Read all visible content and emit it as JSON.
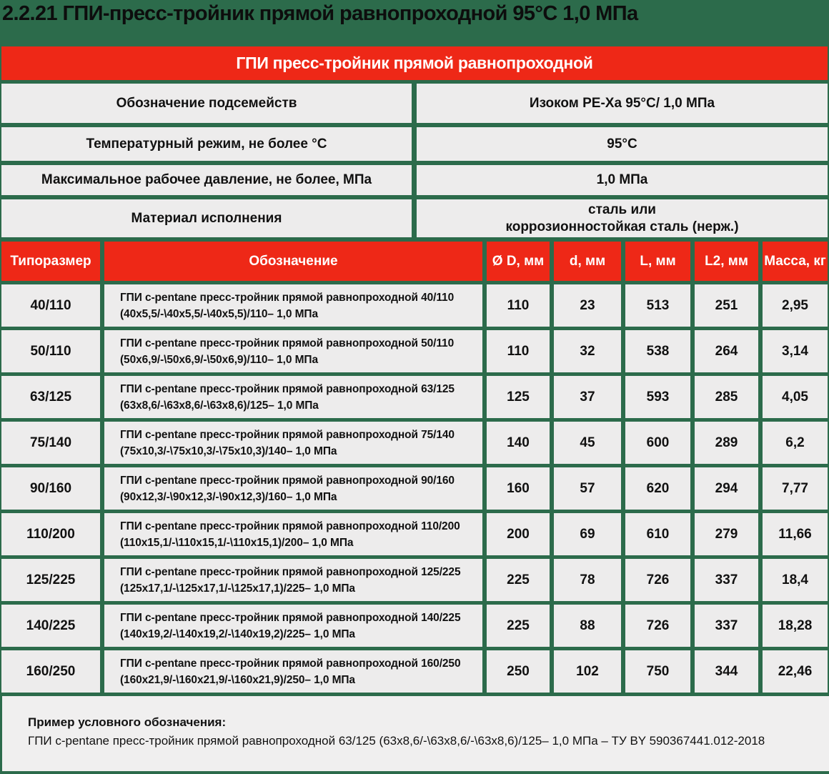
{
  "page": {
    "title": "2.2.21 ГПИ-пресс-тройник прямой равнопроходной 95°С 1,0 МПа",
    "banner": "ГПИ пресс-тройник прямой равнопроходной",
    "colors": {
      "background_green": "#2c6b4b",
      "accent_red": "#ee2817",
      "cell_gray": "#edecec",
      "footer_gray": "#f0efef"
    }
  },
  "specs": [
    {
      "label": "Обозначение подсемейств",
      "value": "Изоком PE-Xa 95°С/ 1,0 МПа"
    },
    {
      "label": "Температурный режим, не более °С",
      "value": "95°С"
    },
    {
      "label": "Максимальное рабочее давление, не более, МПа",
      "value": "1,0 МПа"
    },
    {
      "label": "Материал исполнения",
      "value": "сталь или",
      "value2": "коррозионностойкая сталь (нерж.)"
    }
  ],
  "table": {
    "headers": [
      "Типоразмер",
      "Обозначение",
      "Ø D, мм",
      "d, мм",
      "L, мм",
      "L2, мм",
      "Масса, кг"
    ],
    "rows": [
      {
        "size": "40/110",
        "desc1": "ГПИ c-pentane пресс-тройник прямой равнопроходной 40/110",
        "desc2": "(40x5,5/-\\40x5,5/-\\40x5,5)/110– 1,0 МПа",
        "D": "110",
        "d": "23",
        "L": "513",
        "L2": "251",
        "mass": "2,95"
      },
      {
        "size": "50/110",
        "desc1": "ГПИ c-pentane пресс-тройник прямой равнопроходной 50/110",
        "desc2": "(50x6,9/-\\50x6,9/-\\50x6,9)/110– 1,0 МПа",
        "D": "110",
        "d": "32",
        "L": "538",
        "L2": "264",
        "mass": "3,14"
      },
      {
        "size": "63/125",
        "desc1": "ГПИ c-pentane пресс-тройник прямой равнопроходной 63/125",
        "desc2": "(63x8,6/-\\63x8,6/-\\63x8,6)/125– 1,0 МПа",
        "D": "125",
        "d": "37",
        "L": "593",
        "L2": "285",
        "mass": "4,05"
      },
      {
        "size": "75/140",
        "desc1": "ГПИ c-pentane пресс-тройник прямой равнопроходной 75/140",
        "desc2": "(75x10,3/-\\75x10,3/-\\75x10,3)/140– 1,0 МПа",
        "D": "140",
        "d": "45",
        "L": "600",
        "L2": "289",
        "mass": "6,2"
      },
      {
        "size": "90/160",
        "desc1": "ГПИ c-pentane пресс-тройник прямой равнопроходной 90/160",
        "desc2": "(90x12,3/-\\90x12,3/-\\90x12,3)/160– 1,0 МПа",
        "D": "160",
        "d": "57",
        "L": "620",
        "L2": "294",
        "mass": "7,77"
      },
      {
        "size": "110/200",
        "desc1": "ГПИ c-pentane пресс-тройник прямой равнопроходной 110/200",
        "desc2": "(110x15,1/-\\110x15,1/-\\110x15,1)/200– 1,0 МПа",
        "D": "200",
        "d": "69",
        "L": "610",
        "L2": "279",
        "mass": "11,66"
      },
      {
        "size": "125/225",
        "desc1": "ГПИ c-pentane пресс-тройник прямой равнопроходной 125/225",
        "desc2": "(125x17,1/-\\125x17,1/-\\125x17,1)/225– 1,0 МПа",
        "D": "225",
        "d": "78",
        "L": "726",
        "L2": "337",
        "mass": "18,4"
      },
      {
        "size": "140/225",
        "desc1": "ГПИ c-pentane пресс-тройник прямой равнопроходной 140/225",
        "desc2": "(140x19,2/-\\140x19,2/-\\140x19,2)/225– 1,0 МПа",
        "D": "225",
        "d": "88",
        "L": "726",
        "L2": "337",
        "mass": "18,28"
      },
      {
        "size": "160/250",
        "desc1": "ГПИ c-pentane пресс-тройник прямой равнопроходной 160/250",
        "desc2": "(160x21,9/-\\160x21,9/-\\160x21,9)/250– 1,0 МПа",
        "D": "250",
        "d": "102",
        "L": "750",
        "L2": "344",
        "mass": "22,46"
      }
    ]
  },
  "footer": {
    "label": "Пример условного обозначения:",
    "text": "ГПИ c-pentane пресс-тройник прямой равнопроходной 63/125 (63x8,6/-\\63x8,6/-\\63x8,6)/125– 1,0 МПа – ТУ BY 590367441.012-2018"
  }
}
